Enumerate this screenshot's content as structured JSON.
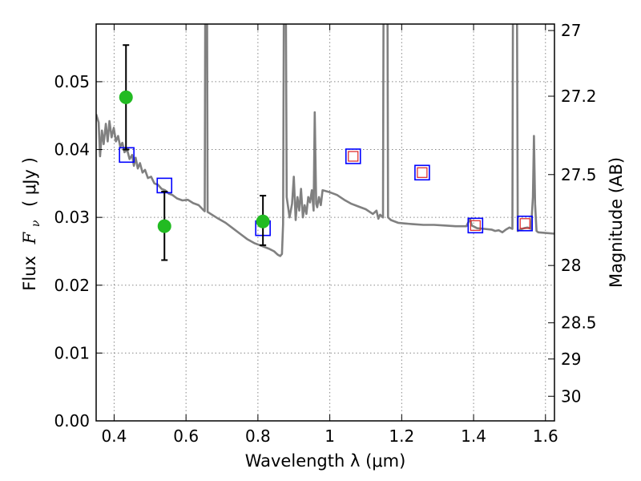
{
  "chart_data": {
    "type": "line",
    "xlabel": "Wavelength  λ (μm)",
    "ylabel_text": "Flux",
    "ylabel_math": "F",
    "ylabel_sub": "ν",
    "ylabel_unit": "( μJy )",
    "y2label": "Magnitude (AB)",
    "xlim": [
      0.35,
      1.625
    ],
    "ylim": [
      0,
      0.0585
    ],
    "grid": true,
    "xticks": [
      {
        "value": 0.4,
        "label": "0.4"
      },
      {
        "value": 0.6,
        "label": "0.6"
      },
      {
        "value": 0.8,
        "label": "0.8"
      },
      {
        "value": 1.0,
        "label": "1"
      },
      {
        "value": 1.2,
        "label": "1.2"
      },
      {
        "value": 1.4,
        "label": "1.4"
      },
      {
        "value": 1.6,
        "label": "1.6"
      }
    ],
    "yticks": [
      {
        "value": 0.0,
        "label": "0.00"
      },
      {
        "value": 0.01,
        "label": "0.01"
      },
      {
        "value": 0.02,
        "label": "0.02"
      },
      {
        "value": 0.03,
        "label": "0.03"
      },
      {
        "value": 0.04,
        "label": "0.04"
      },
      {
        "value": 0.05,
        "label": "0.05"
      }
    ],
    "y2ticks": [
      {
        "mag": 27,
        "label": "27"
      },
      {
        "mag": 27.2,
        "label": "27.2"
      },
      {
        "mag": 27.5,
        "label": "27.5"
      },
      {
        "mag": 28,
        "label": "28"
      },
      {
        "mag": 28.5,
        "label": "28.5"
      },
      {
        "mag": 29,
        "label": "29"
      },
      {
        "mag": 30,
        "label": "30"
      }
    ],
    "colors": {
      "model": "#808080",
      "observed": "#22bb22",
      "model_phot_outer": "#0000ff",
      "model_phot_inner": "#dd2222",
      "errorbar": "#000000",
      "grid": "#888888"
    },
    "series": [
      {
        "kind": "model-spectrum",
        "points": [
          [
            0.35,
            0.0452
          ],
          [
            0.357,
            0.044
          ],
          [
            0.361,
            0.039
          ],
          [
            0.366,
            0.0428
          ],
          [
            0.371,
            0.0408
          ],
          [
            0.377,
            0.0438
          ],
          [
            0.382,
            0.0412
          ],
          [
            0.387,
            0.0442
          ],
          [
            0.393,
            0.0418
          ],
          [
            0.399,
            0.0432
          ],
          [
            0.405,
            0.0412
          ],
          [
            0.411,
            0.042
          ],
          [
            0.417,
            0.0404
          ],
          [
            0.423,
            0.041
          ],
          [
            0.429,
            0.0396
          ],
          [
            0.436,
            0.04
          ],
          [
            0.443,
            0.0386
          ],
          [
            0.45,
            0.0392
          ],
          [
            0.455,
            0.0376
          ],
          [
            0.46,
            0.0388
          ],
          [
            0.466,
            0.0372
          ],
          [
            0.472,
            0.038
          ],
          [
            0.479,
            0.0366
          ],
          [
            0.486,
            0.037
          ],
          [
            0.494,
            0.0358
          ],
          [
            0.503,
            0.036
          ],
          [
            0.512,
            0.035
          ],
          [
            0.522,
            0.0348
          ],
          [
            0.532,
            0.0342
          ],
          [
            0.542,
            0.034
          ],
          [
            0.552,
            0.0335
          ],
          [
            0.562,
            0.0333
          ],
          [
            0.575,
            0.0328
          ],
          [
            0.59,
            0.0325
          ],
          [
            0.605,
            0.0326
          ],
          [
            0.62,
            0.0321
          ],
          [
            0.635,
            0.0318
          ],
          [
            0.648,
            0.0311
          ],
          [
            0.652,
            0.0309
          ],
          [
            0.654,
            0.072
          ],
          [
            0.658,
            0.072
          ],
          [
            0.66,
            0.0308
          ],
          [
            0.672,
            0.0304
          ],
          [
            0.69,
            0.0298
          ],
          [
            0.71,
            0.0292
          ],
          [
            0.73,
            0.0284
          ],
          [
            0.75,
            0.0276
          ],
          [
            0.77,
            0.0268
          ],
          [
            0.79,
            0.0262
          ],
          [
            0.81,
            0.0258
          ],
          [
            0.83,
            0.0254
          ],
          [
            0.845,
            0.025
          ],
          [
            0.855,
            0.0245
          ],
          [
            0.862,
            0.0243
          ],
          [
            0.867,
            0.0246
          ],
          [
            0.87,
            0.029
          ],
          [
            0.873,
            0.072
          ],
          [
            0.877,
            0.072
          ],
          [
            0.88,
            0.033
          ],
          [
            0.888,
            0.03
          ],
          [
            0.895,
            0.032
          ],
          [
            0.9,
            0.036
          ],
          [
            0.905,
            0.0296
          ],
          [
            0.91,
            0.033
          ],
          [
            0.915,
            0.031
          ],
          [
            0.92,
            0.0342
          ],
          [
            0.925,
            0.03
          ],
          [
            0.93,
            0.0318
          ],
          [
            0.935,
            0.0305
          ],
          [
            0.94,
            0.033
          ],
          [
            0.945,
            0.0322
          ],
          [
            0.95,
            0.034
          ],
          [
            0.955,
            0.031
          ],
          [
            0.958,
            0.0455
          ],
          [
            0.962,
            0.032
          ],
          [
            0.965,
            0.0315
          ],
          [
            0.97,
            0.033
          ],
          [
            0.975,
            0.0318
          ],
          [
            0.98,
            0.034
          ],
          [
            1.0,
            0.0337
          ],
          [
            1.02,
            0.0333
          ],
          [
            1.04,
            0.0326
          ],
          [
            1.06,
            0.032
          ],
          [
            1.08,
            0.0316
          ],
          [
            1.1,
            0.0312
          ],
          [
            1.12,
            0.0305
          ],
          [
            1.13,
            0.031
          ],
          [
            1.135,
            0.0298
          ],
          [
            1.14,
            0.0304
          ],
          [
            1.148,
            0.03
          ],
          [
            1.15,
            0.072
          ],
          [
            1.16,
            0.072
          ],
          [
            1.162,
            0.03
          ],
          [
            1.17,
            0.0296
          ],
          [
            1.19,
            0.0292
          ],
          [
            1.21,
            0.0291
          ],
          [
            1.23,
            0.029
          ],
          [
            1.26,
            0.0289
          ],
          [
            1.29,
            0.0289
          ],
          [
            1.32,
            0.0288
          ],
          [
            1.35,
            0.0287
          ],
          [
            1.38,
            0.0287
          ],
          [
            1.39,
            0.0298
          ],
          [
            1.395,
            0.0288
          ],
          [
            1.41,
            0.0284
          ],
          [
            1.43,
            0.0283
          ],
          [
            1.45,
            0.0282
          ],
          [
            1.46,
            0.028
          ],
          [
            1.47,
            0.0281
          ],
          [
            1.48,
            0.0278
          ],
          [
            1.49,
            0.0282
          ],
          [
            1.5,
            0.0285
          ],
          [
            1.508,
            0.0283
          ],
          [
            1.51,
            0.072
          ],
          [
            1.52,
            0.072
          ],
          [
            1.523,
            0.028
          ],
          [
            1.53,
            0.0282
          ],
          [
            1.54,
            0.0284
          ],
          [
            1.55,
            0.0285
          ],
          [
            1.56,
            0.0283
          ],
          [
            1.565,
            0.033
          ],
          [
            1.568,
            0.042
          ],
          [
            1.571,
            0.032
          ],
          [
            1.575,
            0.028
          ],
          [
            1.58,
            0.0278
          ],
          [
            1.6,
            0.0277
          ],
          [
            1.625,
            0.0276
          ]
        ]
      },
      {
        "kind": "observed",
        "points": [
          {
            "x": 0.433,
            "y": 0.0477,
            "ylo": 0.04,
            "yhi": 0.0554
          },
          {
            "x": 0.54,
            "y": 0.0287,
            "ylo": 0.0237,
            "yhi": 0.0338
          },
          {
            "x": 0.814,
            "y": 0.0294,
            "ylo": 0.0259,
            "yhi": 0.0332
          }
        ]
      },
      {
        "kind": "model-photometry",
        "points": [
          {
            "x": 0.435,
            "y": 0.0392,
            "inner": false
          },
          {
            "x": 0.54,
            "y": 0.0347,
            "inner": false
          },
          {
            "x": 0.814,
            "y": 0.0284,
            "inner": false
          },
          {
            "x": 1.065,
            "y": 0.039,
            "inner": true
          },
          {
            "x": 1.257,
            "y": 0.0366,
            "inner": true
          },
          {
            "x": 1.405,
            "y": 0.0288,
            "inner": true
          },
          {
            "x": 1.543,
            "y": 0.0291,
            "inner": true
          }
        ]
      }
    ]
  }
}
